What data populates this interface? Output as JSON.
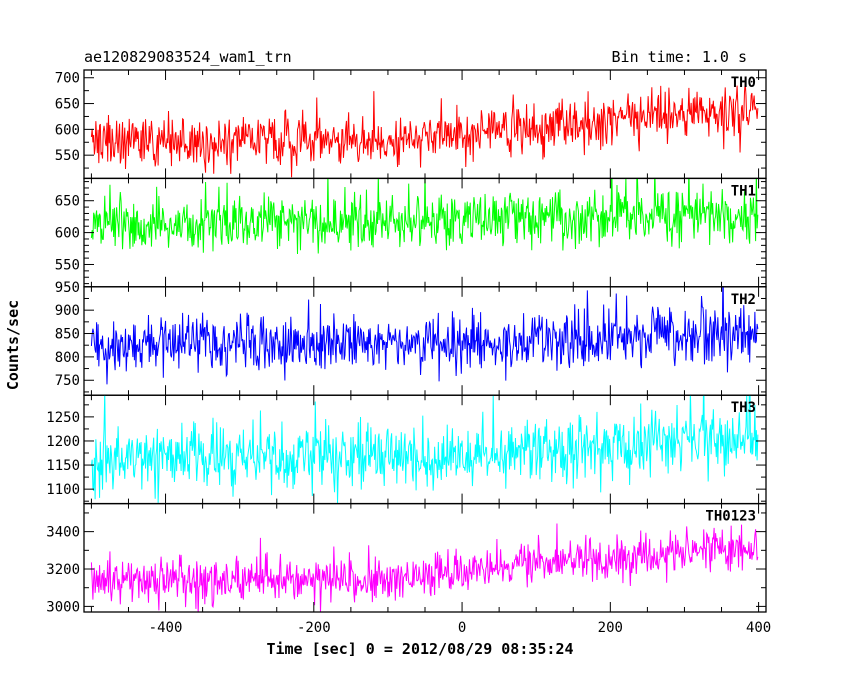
{
  "chart_data": {
    "type": "line",
    "title_left": "ae120829083524_wam1_trn",
    "title_right": "Bin time: 1.0 s",
    "xlabel": "Time [sec] 0 = 2012/08/29 08:35:24",
    "ylabel": "Counts/sec",
    "xlim": [
      -510,
      410
    ],
    "x_ticks": [
      -400,
      -200,
      0,
      200,
      400
    ],
    "x_range": [
      -500,
      399
    ],
    "bin_time_s": 1.0,
    "panels": [
      {
        "label": "TH0",
        "color": "#ff0000",
        "ylim": [
          505,
          715
        ],
        "y_ticks": [
          550,
          600,
          650,
          700
        ],
        "trend": [
          {
            "x": -500,
            "y": 578
          },
          {
            "x": -100,
            "y": 578
          },
          {
            "x": 0,
            "y": 595
          },
          {
            "x": 200,
            "y": 620
          },
          {
            "x": 399,
            "y": 635
          }
        ],
        "noise_sd": 24
      },
      {
        "label": "TH1",
        "color": "#00ff00",
        "ylim": [
          515,
          685
        ],
        "y_ticks": [
          550,
          600,
          650
        ],
        "trend": [
          {
            "x": -500,
            "y": 615
          },
          {
            "x": 0,
            "y": 618
          },
          {
            "x": 200,
            "y": 625
          },
          {
            "x": 399,
            "y": 630
          }
        ],
        "noise_sd": 22
      },
      {
        "label": "TH2",
        "color": "#0000ff",
        "ylim": [
          718,
          950
        ],
        "y_ticks": [
          750,
          800,
          850,
          900,
          950
        ],
        "trend": [
          {
            "x": -500,
            "y": 828
          },
          {
            "x": 0,
            "y": 830
          },
          {
            "x": 200,
            "y": 840
          },
          {
            "x": 399,
            "y": 848
          }
        ],
        "noise_sd": 30
      },
      {
        "label": "TH3",
        "color": "#00ffff",
        "ylim": [
          1070,
          1295
        ],
        "y_ticks": [
          1100,
          1150,
          1200,
          1250
        ],
        "trend": [
          {
            "x": -500,
            "y": 1165
          },
          {
            "x": 0,
            "y": 1170
          },
          {
            "x": 200,
            "y": 1195
          },
          {
            "x": 399,
            "y": 1215
          }
        ],
        "noise_sd": 34
      },
      {
        "label": "TH0123",
        "color": "#ff00ff",
        "ylim": [
          2970,
          3550
        ],
        "y_ticks": [
          3000,
          3200,
          3400
        ],
        "trend": [
          {
            "x": -500,
            "y": 3150
          },
          {
            "x": -100,
            "y": 3140
          },
          {
            "x": 0,
            "y": 3170
          },
          {
            "x": 100,
            "y": 3230
          },
          {
            "x": 200,
            "y": 3260
          },
          {
            "x": 399,
            "y": 3310
          }
        ],
        "noise_sd": 60
      }
    ]
  }
}
